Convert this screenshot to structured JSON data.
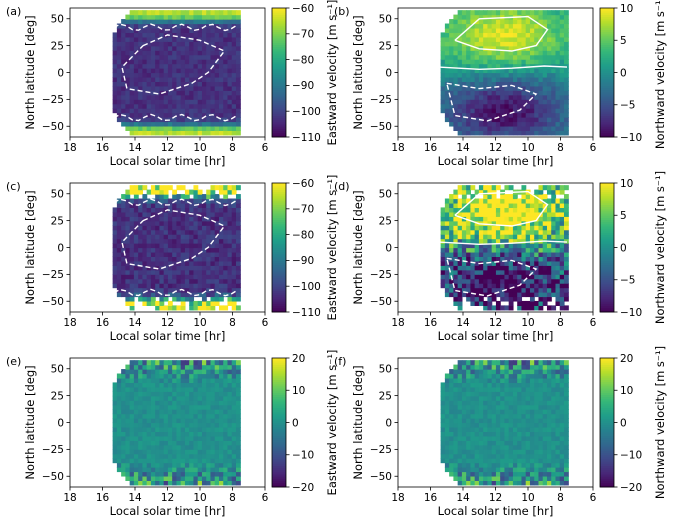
{
  "chart_data": [
    {
      "panel": "(a)",
      "type": "heatmap",
      "xlabel": "Local solar time [hr]",
      "ylabel": "North latitude [deg]",
      "xlim": [
        18,
        6
      ],
      "ylim": [
        -60,
        60
      ],
      "xticks": [
        "18",
        "16",
        "14",
        "12",
        "10",
        "8",
        "6"
      ],
      "yticks": [
        "50",
        "25",
        "0",
        "−25",
        "−50"
      ],
      "colorbar": {
        "label": "Eastward velocity [m s⁻¹]",
        "range": [
          -110,
          -60
        ],
        "ticks": [
          "−60",
          "−70",
          "−80",
          "−90",
          "−100",
          "−110"
        ],
        "colormap": "viridis"
      },
      "field": "eastward",
      "contours": true,
      "contour_levels": "dashed, -90 and -100 m/s"
    },
    {
      "panel": "(b)",
      "type": "heatmap",
      "xlabel": "Local solar time [hr]",
      "ylabel": "North latitude [deg]",
      "xlim": [
        18,
        6
      ],
      "ylim": [
        -60,
        60
      ],
      "xticks": [
        "18",
        "16",
        "14",
        "12",
        "10",
        "8",
        "6"
      ],
      "yticks": [
        "50",
        "25",
        "0",
        "−25",
        "−50"
      ],
      "colorbar": {
        "label": "Northward velocity [m s⁻¹]",
        "range": [
          -10,
          10
        ],
        "ticks": [
          "10",
          "5",
          "0",
          "−5",
          "−10"
        ],
        "colormap": "viridis"
      },
      "field": "northward",
      "contours": true,
      "contour_levels": "solid positive, dashed negative"
    },
    {
      "panel": "(c)",
      "type": "heatmap",
      "xlabel": "Local solar time [hr]",
      "ylabel": "North latitude [deg]",
      "xlim": [
        18,
        6
      ],
      "ylim": [
        -60,
        60
      ],
      "xticks": [
        "18",
        "16",
        "14",
        "12",
        "10",
        "8",
        "6"
      ],
      "yticks": [
        "50",
        "25",
        "0",
        "−25",
        "−50"
      ],
      "colorbar": {
        "label": "Eastward velocity [m s⁻¹]",
        "range": [
          -110,
          -60
        ],
        "ticks": [
          "−60",
          "−70",
          "−80",
          "−90",
          "−100",
          "−110"
        ],
        "colormap": "viridis"
      },
      "field": "eastward-noisy",
      "contours": true,
      "contour_levels": "dashed"
    },
    {
      "panel": "(d)",
      "type": "heatmap",
      "xlabel": "Local solar time [hr]",
      "ylabel": "North latitude [deg]",
      "xlim": [
        18,
        6
      ],
      "ylim": [
        -60,
        60
      ],
      "xticks": [
        "18",
        "16",
        "14",
        "12",
        "10",
        "8",
        "6"
      ],
      "yticks": [
        "50",
        "25",
        "0",
        "−25",
        "−50"
      ],
      "colorbar": {
        "label": "Northward velocity [m s⁻¹]",
        "range": [
          -10,
          10
        ],
        "ticks": [
          "10",
          "5",
          "0",
          "−5",
          "−10"
        ],
        "colormap": "viridis"
      },
      "field": "northward-noisy",
      "contours": true,
      "contour_levels": "solid positive, dashed negative"
    },
    {
      "panel": "(e)",
      "type": "heatmap",
      "xlabel": "Local solar time [hr]",
      "ylabel": "North latitude [deg]",
      "xlim": [
        18,
        6
      ],
      "ylim": [
        -60,
        60
      ],
      "xticks": [
        "18",
        "16",
        "14",
        "12",
        "10",
        "8",
        "6"
      ],
      "yticks": [
        "50",
        "25",
        "0",
        "−25",
        "−50"
      ],
      "colorbar": {
        "label": "Eastward velocity [m s⁻¹]",
        "range": [
          -20,
          20
        ],
        "ticks": [
          "20",
          "10",
          "0",
          "−10",
          "−20"
        ],
        "colormap": "viridis"
      },
      "field": "residual",
      "contours": false
    },
    {
      "panel": "(f)",
      "type": "heatmap",
      "xlabel": "Local solar time [hr]",
      "ylabel": "North latitude [deg]",
      "xlim": [
        18,
        6
      ],
      "ylim": [
        -60,
        60
      ],
      "xticks": [
        "18",
        "16",
        "14",
        "12",
        "10",
        "8",
        "6"
      ],
      "yticks": [
        "50",
        "25",
        "0",
        "−25",
        "−50"
      ],
      "colorbar": {
        "label": "Northward velocity [m s⁻¹]",
        "range": [
          -20,
          20
        ],
        "ticks": [
          "20",
          "10",
          "0",
          "−10",
          "−20"
        ],
        "colormap": "viridis"
      },
      "field": "residual",
      "contours": false
    }
  ]
}
